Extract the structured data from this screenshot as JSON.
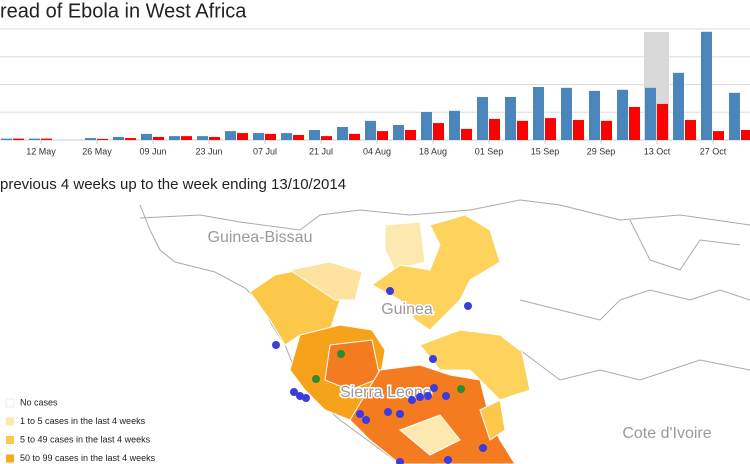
{
  "chart_data": {
    "type": "bar",
    "title": "read of Ebola in West Africa",
    "categories": [
      null,
      "12 May",
      null,
      "26 May",
      null,
      "09 Jun",
      null,
      "23 Jun",
      null,
      "07 Jul",
      null,
      "21 Jul",
      null,
      "04 Aug",
      null,
      "18 Aug",
      null,
      "01 Sep",
      null,
      "15 Sep",
      null,
      "29 Sep",
      null,
      "13 Oct",
      null,
      "27 Oct",
      null
    ],
    "series": [
      {
        "color": "#4a86bc",
        "values": [
          5,
          5,
          0,
          7,
          11,
          22,
          14,
          14,
          32,
          25,
          25,
          36,
          47,
          69,
          54,
          101,
          105,
          155,
          155,
          191,
          188,
          177,
          181,
          188,
          242,
          390,
          170
        ]
      },
      {
        "color": "#ff0000",
        "values": [
          5,
          5,
          0,
          4,
          7,
          11,
          14,
          11,
          25,
          22,
          18,
          14,
          22,
          32,
          36,
          61,
          40,
          76,
          69,
          79,
          72,
          69,
          119,
          130,
          72,
          32,
          36
        ]
      }
    ],
    "highlight_index": 23,
    "ylim": [
      0,
      400
    ],
    "yticks": [
      100,
      200,
      300,
      400
    ],
    "grid": true
  },
  "map": {
    "subtitle": "previous 4 weeks up to the week ending 13/10/2014",
    "labels": [
      "Guinea-Bissau",
      "Guinea",
      "Sierra Leone",
      "Cote d'Ivoire"
    ],
    "legend": [
      {
        "label": "No cases",
        "color": "#ffffff"
      },
      {
        "label": "1 to 5 cases in the last 4 weeks",
        "color": "#fde9b0"
      },
      {
        "label": "5 to 49 cases in the last 4 weeks",
        "color": "#fcc84a"
      },
      {
        "label": "50 to 99 cases in the last 4 weeks",
        "color": "#f7a81b"
      }
    ]
  }
}
